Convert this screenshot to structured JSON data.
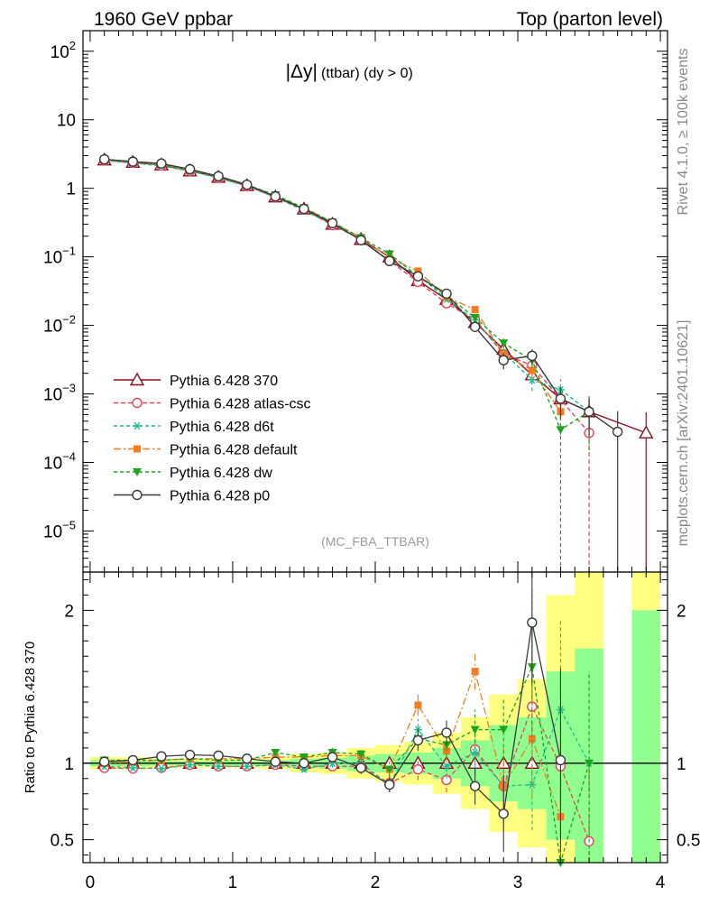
{
  "header": {
    "left_title": "1960 GeV ppbar",
    "right_title": "Top (parton level)"
  },
  "side_labels": {
    "rivet": "Rivet 4.1.0, ≥ 100k events",
    "mcplots": "mcplots.cern.ch [arXiv:2401.10621]"
  },
  "chart_data": [
    {
      "type": "line",
      "title_main": "|Δy|",
      "title_sub": "(ttbar) (dy > 0)",
      "watermark": "(MC_FBA_TTBAR)",
      "yscale": "log",
      "xlim": [
        -0.05,
        4.05
      ],
      "ylim_exp": [
        -5.6,
        2.3
      ],
      "ytick_labels": [
        {
          "exp": 2,
          "base": "10",
          "sup": "2"
        },
        {
          "exp": 1,
          "text": "10"
        },
        {
          "exp": 0,
          "text": "1"
        },
        {
          "exp": -1,
          "base": "10",
          "sup": "−1"
        },
        {
          "exp": -2,
          "base": "10",
          "sup": "−2"
        },
        {
          "exp": -3,
          "base": "10",
          "sup": "−3"
        },
        {
          "exp": -4,
          "base": "10",
          "sup": "−4"
        },
        {
          "exp": -5,
          "base": "10",
          "sup": "−5"
        }
      ],
      "x": [
        0.1,
        0.3,
        0.5,
        0.7,
        0.9,
        1.1,
        1.3,
        1.5,
        1.7,
        1.9,
        2.1,
        2.3,
        2.5,
        2.7,
        2.9,
        3.1,
        3.3,
        3.5,
        3.7,
        3.9
      ],
      "legend_position": "bottom-left",
      "series": [
        {
          "name": "Pythia 6.428 370",
          "color": "#8b0b1e",
          "dash": "",
          "marker": "triangle-open",
          "values": [
            2.6,
            2.4,
            2.2,
            1.8,
            1.45,
            1.1,
            0.75,
            0.5,
            0.3,
            0.18,
            0.1,
            0.045,
            0.024,
            0.011,
            0.0045,
            0.0019,
            0.00085,
            0.00055,
            null,
            0.00027
          ],
          "errors": [
            0.04,
            0.04,
            0.04,
            0.03,
            0.03,
            0.02,
            0.02,
            0.01,
            0.01,
            0.01,
            0.005,
            0.003,
            0.002,
            0.0015,
            0.0008,
            0.0005,
            0.0003,
            0.0003,
            null,
            0.00027
          ]
        },
        {
          "name": "Pythia 6.428 atlas-csc",
          "color": "#e8425a",
          "dash": "5,3",
          "marker": "circle-open",
          "values": [
            2.55,
            2.35,
            2.15,
            1.8,
            1.42,
            1.08,
            0.74,
            0.49,
            0.29,
            0.18,
            0.087,
            0.043,
            0.021,
            0.012,
            0.0038,
            0.0026,
            0.00083,
            0.00027,
            null,
            null
          ],
          "errors": [
            0.04,
            0.04,
            0.04,
            0.03,
            0.03,
            0.02,
            0.02,
            0.01,
            0.01,
            0.01,
            0.005,
            0.003,
            0.002,
            0.0015,
            0.0008,
            0.0007,
            0.0004,
            0.00027,
            null,
            null
          ]
        },
        {
          "name": "Pythia 6.428 d6t",
          "color": "#18c090",
          "dash": "4,3",
          "marker": "asterisk",
          "values": [
            2.55,
            2.33,
            2.12,
            1.78,
            1.42,
            1.07,
            0.74,
            0.47,
            0.3,
            0.18,
            0.086,
            0.055,
            0.024,
            0.012,
            0.004,
            0.0016,
            0.00115,
            0.00055,
            null,
            null
          ],
          "errors": [
            0.04,
            0.04,
            0.04,
            0.03,
            0.03,
            0.02,
            0.02,
            0.01,
            0.01,
            0.01,
            0.005,
            0.003,
            0.002,
            0.0015,
            0.0008,
            0.0005,
            0.0005,
            0.0003,
            null,
            null
          ]
        },
        {
          "name": "Pythia 6.428 default",
          "color": "#f47c20",
          "dash": "8,3,2,3",
          "marker": "square",
          "values": [
            2.6,
            2.42,
            2.25,
            1.85,
            1.5,
            1.13,
            0.78,
            0.52,
            0.32,
            0.19,
            0.096,
            0.062,
            0.026,
            0.017,
            0.0038,
            0.0022,
            0.00055,
            null,
            null,
            null
          ],
          "errors": [
            0.04,
            0.04,
            0.04,
            0.03,
            0.03,
            0.02,
            0.02,
            0.01,
            0.01,
            0.01,
            0.005,
            0.003,
            0.002,
            0.0015,
            0.0008,
            0.0006,
            0.0003,
            null,
            null,
            null
          ]
        },
        {
          "name": "Pythia 6.428 dw",
          "color": "#1aa51a",
          "dash": "4,3",
          "marker": "triangle-down",
          "values": [
            2.65,
            2.45,
            2.25,
            1.85,
            1.48,
            1.12,
            0.8,
            0.52,
            0.32,
            0.19,
            0.11,
            0.052,
            0.027,
            0.013,
            0.0055,
            0.0031,
            0.0003,
            0.00055,
            null,
            null
          ],
          "errors": [
            0.04,
            0.04,
            0.04,
            0.03,
            0.03,
            0.02,
            0.02,
            0.01,
            0.01,
            0.01,
            0.005,
            0.003,
            0.002,
            0.0015,
            0.0009,
            0.0007,
            0.0003,
            0.0004,
            null,
            null
          ]
        },
        {
          "name": "Pythia 6.428 p0",
          "color": "#3a3a3a",
          "dash": "",
          "marker": "circle-open",
          "values": [
            2.65,
            2.45,
            2.3,
            1.9,
            1.5,
            1.13,
            0.76,
            0.5,
            0.31,
            0.175,
            0.087,
            0.052,
            0.029,
            0.0095,
            0.0031,
            0.0036,
            0.00085,
            0.00055,
            0.00028,
            null
          ],
          "errors": [
            0.04,
            0.04,
            0.04,
            0.03,
            0.03,
            0.02,
            0.02,
            0.01,
            0.01,
            0.01,
            0.005,
            0.003,
            0.002,
            0.0015,
            0.0008,
            0.0009,
            0.0004,
            0.0003,
            0.00028,
            null
          ]
        }
      ]
    },
    {
      "type": "line",
      "ylabel": "Ratio to Pythia 6.428 370",
      "xlim": [
        -0.05,
        4.05
      ],
      "ylim": [
        0.35,
        2.25
      ],
      "ytick_values": [
        0.5,
        1,
        2
      ],
      "ytick_labels": [
        "0.5",
        "1",
        "2"
      ],
      "xtick_values": [
        0,
        1,
        2,
        3,
        4
      ],
      "xtick_labels": [
        "0",
        "1",
        "2",
        "3",
        "4"
      ],
      "reference_line": 1,
      "band_edges": [
        0,
        0.2,
        0.4,
        0.6,
        0.8,
        1.0,
        1.2,
        1.4,
        1.6,
        1.8,
        2.0,
        2.2,
        2.4,
        2.6,
        2.8,
        3.0,
        3.2,
        3.4,
        3.6
      ],
      "band_yellow": [
        [
          0.96,
          1.04
        ],
        [
          0.96,
          1.04
        ],
        [
          0.97,
          1.03
        ],
        [
          0.97,
          1.03
        ],
        [
          0.97,
          1.03
        ],
        [
          0.97,
          1.03
        ],
        [
          0.96,
          1.04
        ],
        [
          0.94,
          1.06
        ],
        [
          0.93,
          1.07
        ],
        [
          0.9,
          1.1
        ],
        [
          0.88,
          1.12
        ],
        [
          0.86,
          1.14
        ],
        [
          0.8,
          1.2
        ],
        [
          0.7,
          1.3
        ],
        [
          0.55,
          1.45
        ],
        [
          0.45,
          1.55
        ],
        [
          0.3,
          2.1
        ],
        [
          0.3,
          2.25
        ]
      ],
      "band_green": [
        [
          0.98,
          1.02
        ],
        [
          0.98,
          1.02
        ],
        [
          0.985,
          1.015
        ],
        [
          0.985,
          1.015
        ],
        [
          0.985,
          1.015
        ],
        [
          0.985,
          1.015
        ],
        [
          0.98,
          1.02
        ],
        [
          0.97,
          1.03
        ],
        [
          0.965,
          1.035
        ],
        [
          0.95,
          1.05
        ],
        [
          0.94,
          1.06
        ],
        [
          0.93,
          1.07
        ],
        [
          0.9,
          1.1
        ],
        [
          0.85,
          1.15
        ],
        [
          0.75,
          1.25
        ],
        [
          0.7,
          1.3
        ],
        [
          0.5,
          1.6
        ],
        [
          0.3,
          1.75
        ]
      ],
      "band2_edges": [
        3.8,
        4.0
      ],
      "band2_yellow": [
        0.3,
        2.25
      ],
      "band2_green": [
        0.3,
        2.0
      ],
      "series": [
        {
          "name": "Pythia 6.428 atlas-csc",
          "values": [
            0.97,
            0.965,
            0.97,
            0.99,
            0.98,
            0.98,
            0.99,
            0.98,
            0.98,
            0.98,
            0.87,
            0.96,
            0.89,
            1.09,
            0.85,
            1.37,
            0.98,
            0.49,
            null,
            null
          ]
        },
        {
          "name": "Pythia 6.428 d6t",
          "values": [
            0.98,
            0.97,
            0.965,
            0.99,
            0.98,
            0.98,
            0.99,
            0.96,
            1.0,
            1.0,
            0.86,
            1.22,
            0.98,
            1.07,
            0.85,
            0.86,
            1.35,
            1.0,
            null,
            null
          ]
        },
        {
          "name": "Pythia 6.428 default",
          "values": [
            1.0,
            1.01,
            1.02,
            1.03,
            1.03,
            1.03,
            1.04,
            1.04,
            1.05,
            1.05,
            0.96,
            1.38,
            1.08,
            1.6,
            0.85,
            1.16,
            0.65,
            null,
            null,
            null
          ]
        },
        {
          "name": "Pythia 6.428 dw",
          "values": [
            1.02,
            1.02,
            1.02,
            1.03,
            1.02,
            1.02,
            1.07,
            1.04,
            1.07,
            1.06,
            0.96,
            1.16,
            1.12,
            1.22,
            1.22,
            1.63,
            0.35,
            1.0,
            null,
            null
          ]
        },
        {
          "name": "Pythia 6.428 p0",
          "values": [
            1.01,
            1.02,
            1.045,
            1.055,
            1.05,
            1.03,
            1.01,
            1.0,
            1.04,
            0.97,
            0.86,
            1.15,
            1.2,
            0.85,
            0.67,
            1.92,
            1.02,
            null,
            null,
            null
          ]
        }
      ],
      "errors": {
        "Pythia 6.428 atlas-csc": [
          0.02,
          0.02,
          0.02,
          0.02,
          0.02,
          0.02,
          0.02,
          0.02,
          0.03,
          0.04,
          0.05,
          0.07,
          0.08,
          0.15,
          0.2,
          0.5,
          0.6,
          0.5,
          null,
          null
        ],
        "Pythia 6.428 d6t": [
          0.02,
          0.02,
          0.02,
          0.02,
          0.02,
          0.02,
          0.02,
          0.02,
          0.03,
          0.04,
          0.05,
          0.07,
          0.08,
          0.15,
          0.2,
          0.3,
          0.6,
          0.6,
          null,
          null
        ],
        "Pythia 6.428 default": [
          0.02,
          0.02,
          0.02,
          0.02,
          0.02,
          0.02,
          0.02,
          0.02,
          0.03,
          0.04,
          0.05,
          0.07,
          0.08,
          0.12,
          0.25,
          0.4,
          0.5,
          null,
          null,
          null
        ],
        "Pythia 6.428 dw": [
          0.02,
          0.02,
          0.02,
          0.02,
          0.02,
          0.02,
          0.02,
          0.02,
          0.03,
          0.04,
          0.05,
          0.07,
          0.08,
          0.13,
          0.2,
          0.5,
          0.5,
          0.6,
          null,
          null
        ],
        "Pythia 6.428 p0": [
          0.02,
          0.02,
          0.02,
          0.02,
          0.02,
          0.02,
          0.02,
          0.02,
          0.03,
          0.04,
          0.05,
          0.07,
          0.08,
          0.12,
          0.25,
          0.4,
          0.6,
          null,
          null,
          null
        ]
      }
    }
  ]
}
